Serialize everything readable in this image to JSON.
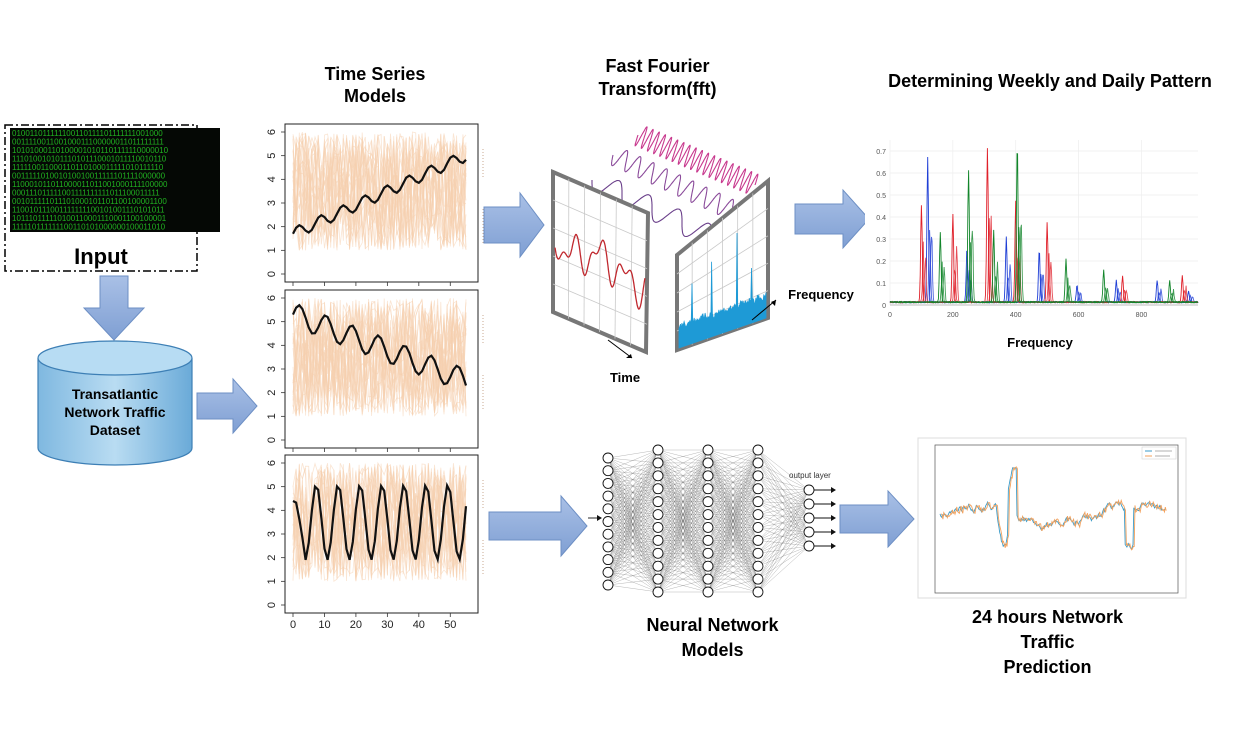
{
  "input": {
    "label": "Input"
  },
  "dataset": {
    "line1": "Transatlantic",
    "line2": "Network Traffic",
    "line3": "Dataset"
  },
  "time_series": {
    "title_line1": "Time Series",
    "title_line2": "Models",
    "y_ticks": [
      "0",
      "1",
      "2",
      "3",
      "4",
      "5",
      "6"
    ],
    "x_ticks": [
      "0",
      "10",
      "20",
      "30",
      "40",
      "50"
    ]
  },
  "fft": {
    "title_line1": "Fast Fourier",
    "title_line2": "Transform(fft)",
    "time_label": "Time",
    "frequency_label": "Frequency"
  },
  "pattern": {
    "title": "Determining Weekly and Daily Pattern",
    "xlabel": "Frequency",
    "y_ticks": [
      "0",
      "0.1",
      "0.2",
      "0.3",
      "0.4",
      "0.5",
      "0.6",
      "0.7"
    ],
    "x_ticks": [
      "0",
      "200",
      "400",
      "600",
      "800"
    ]
  },
  "neural": {
    "title_line1": "Neural Network",
    "title_line2": "Models",
    "output_layer": "output layer"
  },
  "prediction": {
    "line1": "24 hours Network",
    "line2": "Traffic",
    "line3": "Prediction"
  },
  "colors": {
    "arrow": "#8eaad8",
    "arrow_stroke": "#5b7fb8",
    "cylinder": "#8fc4e6",
    "ts_line": "#f5cfae",
    "matrix_green": "#21b321"
  }
}
